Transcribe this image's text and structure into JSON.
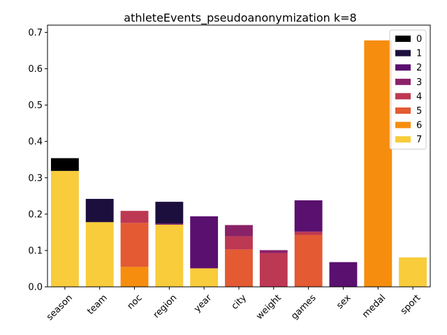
{
  "chart_data": {
    "type": "bar",
    "stacked": true,
    "title": "athleteEvents_pseudoanonymization k=8",
    "xlabel": "",
    "ylabel": "",
    "categories": [
      "season",
      "team",
      "noc",
      "region",
      "year",
      "city",
      "weight",
      "games",
      "sex",
      "medal",
      "sport"
    ],
    "ylim": [
      0,
      0.72
    ],
    "yticks": [
      0.0,
      0.1,
      0.2,
      0.3,
      0.4,
      0.5,
      0.6,
      0.7
    ],
    "ytick_labels": [
      "0.0",
      "0.1",
      "0.2",
      "0.3",
      "0.4",
      "0.5",
      "0.6",
      "0.7"
    ],
    "legend_position": "top-right",
    "grid": false,
    "series": [
      {
        "name": "0",
        "color": "#000004",
        "values": [
          0.035,
          0.0,
          0.0,
          0.0,
          0.0,
          0.0,
          0.0,
          0.0,
          0.0,
          0.0,
          0.0
        ]
      },
      {
        "name": "1",
        "color": "#1b0c41",
        "values": [
          0.0,
          0.064,
          0.0,
          0.06,
          0.0,
          0.0,
          0.0,
          0.0,
          0.0,
          0.0,
          0.0
        ]
      },
      {
        "name": "2",
        "color": "#4a0c6b",
        "values": [
          0.0,
          0.0,
          0.0,
          0.0,
          0.143,
          0.0,
          0.0,
          0.086,
          0.068,
          0.0,
          0.0
        ]
      },
      {
        "name": "3",
        "color": "#781c6d",
        "values": [
          0.0,
          0.0,
          0.0,
          0.003,
          0.0,
          0.031,
          0.008,
          0.0,
          0.0,
          0.0,
          0.0
        ]
      },
      {
        "name": "4",
        "color": "#a52c60",
        "values": [
          0.0,
          0.0,
          0.033,
          0.0,
          0.0,
          0.036,
          0.093,
          0.009,
          0.0,
          0.0,
          0.0
        ]
      },
      {
        "name": "5",
        "color": "#cf4446",
        "values": [
          0.0,
          0.0,
          0.121,
          0.0,
          0.0,
          0.103,
          0.0,
          0.143,
          0.0,
          0.0,
          0.0
        ]
      },
      {
        "name": "6",
        "color": "#ed6925",
        "values": [
          0.0,
          0.0,
          0.055,
          0.0,
          0.0,
          0.0,
          0.0,
          0.0,
          0.0,
          0.678,
          0.0
        ]
      },
      {
        "name": "7",
        "color": "#fb9b06",
        "values": [
          0.319,
          0.178,
          0.0,
          0.171,
          0.051,
          0.0,
          0.0,
          0.0,
          0.0,
          0.0,
          0.081
        ]
      }
    ]
  },
  "render_colors": {
    "0": "#000000",
    "1": "#1d0f3d",
    "2": "#5a106e",
    "3": "#8a2268",
    "4": "#bd3853",
    "5": "#e35a33",
    "6": "#f68d0e",
    "7": "#f8cc3a"
  }
}
